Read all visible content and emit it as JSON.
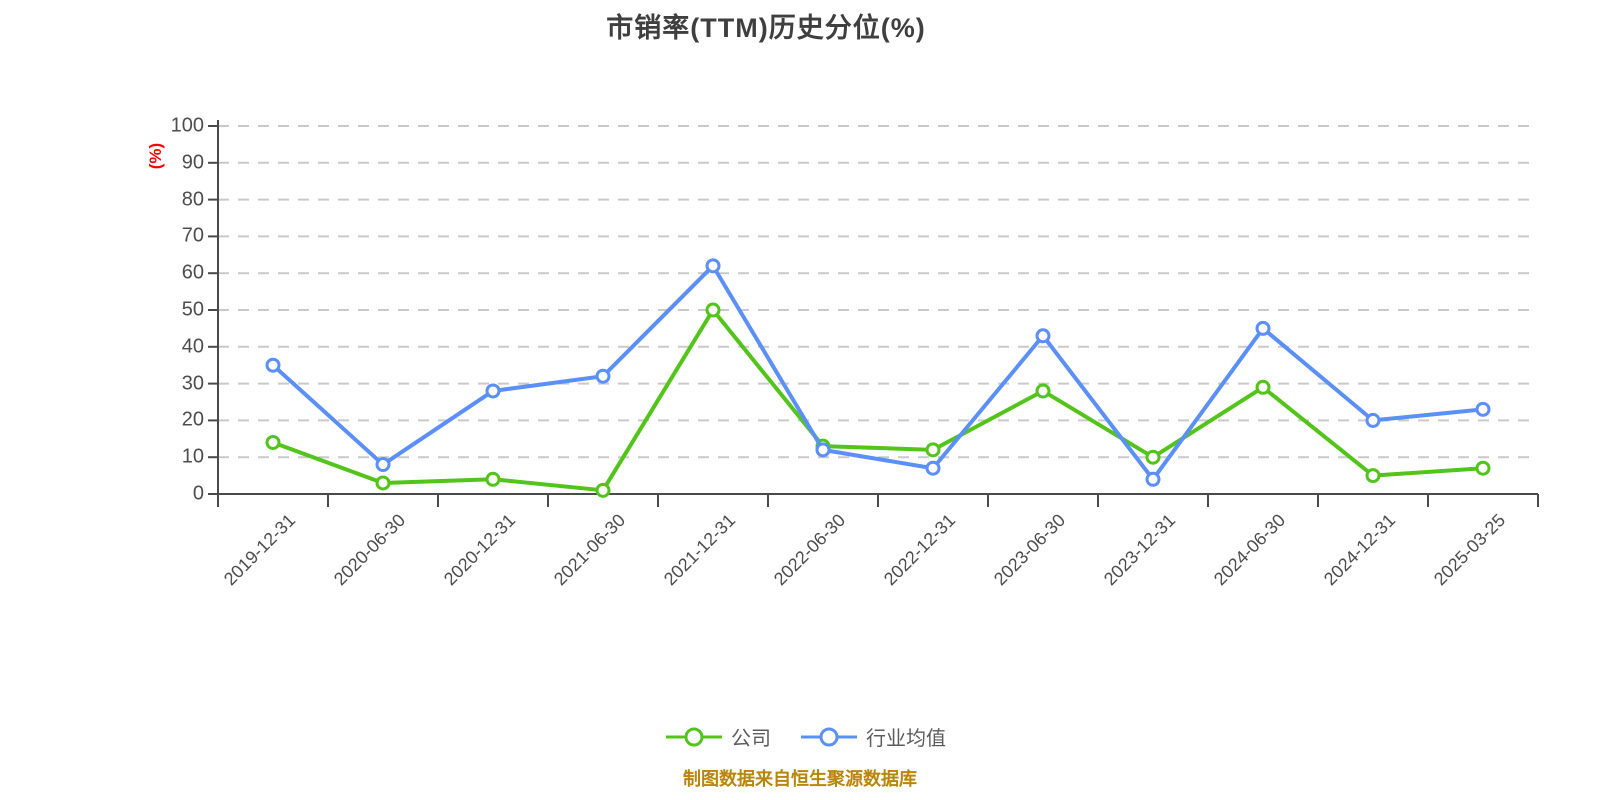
{
  "title": "市销率(TTM)历史分位(%)",
  "caption": "制图数据来自恒生聚源数据库",
  "y_axis": {
    "unit_label": "(%)"
  },
  "chart_data": {
    "type": "line",
    "title": "市销率(TTM)历史分位(%)",
    "categories": [
      "2019-12-31",
      "2020-06-30",
      "2020-12-31",
      "2021-06-30",
      "2021-12-31",
      "2022-06-30",
      "2022-12-31",
      "2023-06-30",
      "2023-12-31",
      "2024-06-30",
      "2024-12-31",
      "2025-03-25"
    ],
    "series": [
      {
        "name": "公司",
        "color": "#52c41a",
        "marker": "circle",
        "values": [
          14,
          3,
          4,
          1,
          50,
          13,
          12,
          28,
          10,
          29,
          5,
          7
        ]
      },
      {
        "name": "行业均值",
        "color": "#5b8ff9",
        "marker": "circle",
        "values": [
          35,
          8,
          28,
          32,
          62,
          12,
          7,
          43,
          4,
          45,
          20,
          23
        ]
      }
    ],
    "xlabel": "",
    "ylabel": "(%)",
    "ylim": [
      0,
      100
    ],
    "ytick_step": 10,
    "grid": "horizontal-dashed",
    "legend_position": "bottom-center",
    "x_tick_label_rotation_deg": 45
  },
  "colors": {
    "company_line": "#52c41a",
    "industry_line": "#5b8ff9",
    "y_unit_red": "#ff0000",
    "caption_gold": "#b8860b",
    "grid_line": "#c9c9c9",
    "axis_line": "#4a4a4a",
    "tick_text": "#4d4d4d",
    "title_text": "#3f3f3f",
    "legend_text": "#5c5c5c",
    "marker_fill": "#ffffff"
  }
}
